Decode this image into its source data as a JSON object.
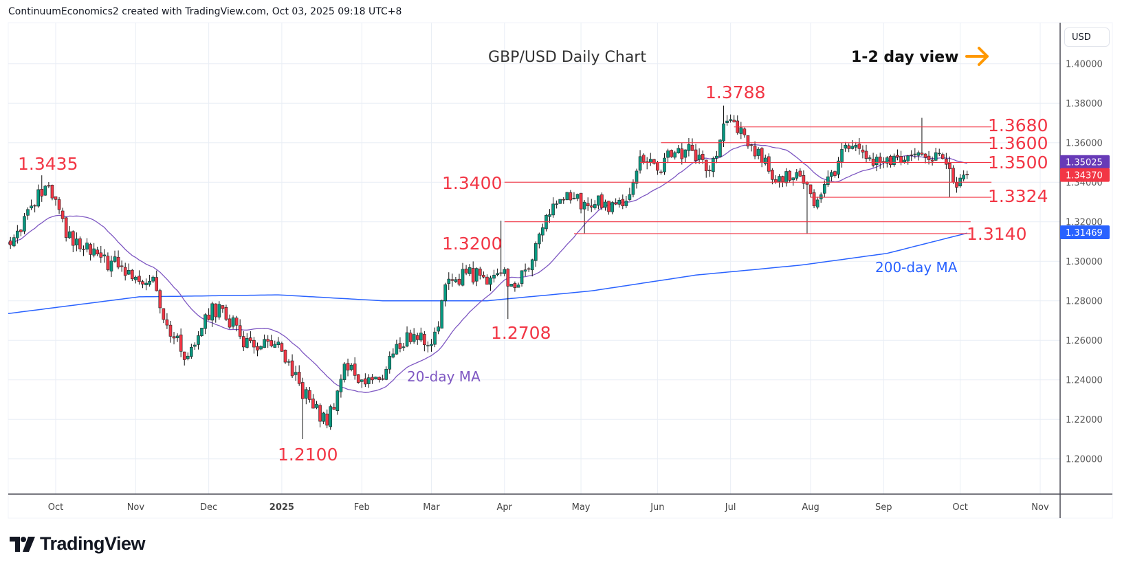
{
  "attribution": "ContinuumEconomics2 created with TradingView.com, Oct 03, 2025 09:18 UTC+8",
  "currency": "USD",
  "brand": "TradingView",
  "colors": {
    "up": "#089981",
    "down": "#f23645",
    "ma20": "#7e57c2",
    "ma200": "#2962ff",
    "level": "#f23645",
    "arrow": "#ff9800"
  },
  "chart_data": {
    "type": "candlestick",
    "title": "GBP/USD Daily Chart",
    "view_label": "1-2 day view",
    "view_icon": "arrow-right-icon",
    "ylim": [
      1.187,
      1.416
    ],
    "yticks": [
      "1.20000",
      "1.22000",
      "1.24000",
      "1.26000",
      "1.28000",
      "1.30000",
      "1.32000",
      "1.34000",
      "1.36000",
      "1.38000",
      "1.40000"
    ],
    "xticks": [
      {
        "label": "Oct",
        "bar": 16,
        "bold": false
      },
      {
        "label": "Nov",
        "bar": 39,
        "bold": false
      },
      {
        "label": "Dec",
        "bar": 60,
        "bold": false
      },
      {
        "label": "2025",
        "bar": 81,
        "bold": true
      },
      {
        "label": "Feb",
        "bar": 104,
        "bold": false
      },
      {
        "label": "Mar",
        "bar": 124,
        "bold": false
      },
      {
        "label": "Apr",
        "bar": 145,
        "bold": false
      },
      {
        "label": "May",
        "bar": 167,
        "bold": false
      },
      {
        "label": "Jun",
        "bar": 189,
        "bold": false
      },
      {
        "label": "Jul",
        "bar": 210,
        "bold": false
      },
      {
        "label": "Aug",
        "bar": 233,
        "bold": false
      },
      {
        "label": "Sep",
        "bar": 254,
        "bold": false
      },
      {
        "label": "Oct",
        "bar": 276,
        "bold": false
      },
      {
        "label": "Nov",
        "bar": 299,
        "bold": false
      }
    ],
    "weekly_closes_start": "2024-09-13",
    "weekly_closes": [
      1.312,
      1.328,
      1.338,
      1.312,
      1.306,
      1.302,
      1.297,
      1.292,
      1.292,
      1.262,
      1.252,
      1.273,
      1.276,
      1.262,
      1.255,
      1.258,
      1.242,
      1.23,
      1.217,
      1.248,
      1.24,
      1.24,
      1.258,
      1.263,
      1.258,
      1.291,
      1.294,
      1.292,
      1.294,
      1.288,
      1.309,
      1.329,
      1.331,
      1.328,
      1.33,
      1.328,
      1.353,
      1.346,
      1.355,
      1.356,
      1.346,
      1.371,
      1.364,
      1.35,
      1.343,
      1.345,
      1.328,
      1.345,
      1.357,
      1.352,
      1.35,
      1.35,
      1.355,
      1.355,
      1.34,
      1.3437
    ],
    "ma200_points": [
      [
        0,
        1.273
      ],
      [
        40,
        1.282
      ],
      [
        80,
        1.283
      ],
      [
        110,
        1.28
      ],
      [
        140,
        1.28
      ],
      [
        170,
        1.285
      ],
      [
        200,
        1.293
      ],
      [
        230,
        1.298
      ],
      [
        255,
        1.304
      ],
      [
        279,
        1.3147
      ]
    ],
    "series": [
      {
        "name": "20-day MA",
        "label": "20-day MA"
      },
      {
        "name": "200-day MA",
        "label": "200-day MA"
      }
    ],
    "levels": [
      {
        "value": 1.368,
        "label": "1.3680",
        "from_bar": 211,
        "to_bar": 285
      },
      {
        "value": 1.36,
        "label": "1.3600",
        "from_bar": 190,
        "to_bar": 285
      },
      {
        "value": 1.35,
        "label": "1.3500",
        "from_bar": 184,
        "to_bar": 285
      },
      {
        "value": 1.34,
        "label": "1.3400",
        "from_bar": 145,
        "to_bar": 285
      },
      {
        "value": 1.3324,
        "label": "1.3324",
        "from_bar": 233,
        "to_bar": 285
      },
      {
        "value": 1.32,
        "label": "1.3200",
        "from_bar": 145,
        "to_bar": 279
      },
      {
        "value": 1.314,
        "label": "1.3140",
        "from_bar": 165,
        "to_bar": 279
      }
    ],
    "annotations": [
      {
        "label": "1.3435",
        "value": 1.3435
      },
      {
        "label": "1.2100",
        "value": 1.21
      },
      {
        "label": "1.2708",
        "value": 1.2708
      },
      {
        "label": "1.3788",
        "value": 1.3788
      }
    ],
    "price_badges": [
      {
        "label": "1.35025",
        "value": 1.35025,
        "color": "#673ab7"
      },
      {
        "label": "1.34370",
        "value": 1.3437,
        "color": "#f23645"
      },
      {
        "label": "1.31469",
        "value": 1.31469,
        "color": "#2962ff"
      }
    ]
  }
}
